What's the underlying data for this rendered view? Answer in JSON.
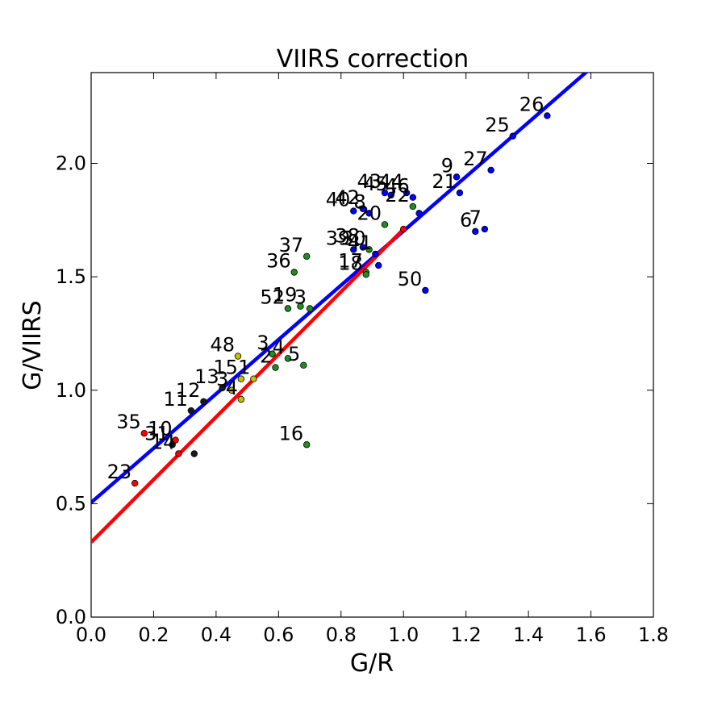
{
  "chart_data": {
    "type": "scatter",
    "title": "VIIRS correction",
    "xlabel": "G/R",
    "ylabel": "G/VIIRS",
    "xlim": [
      0.0,
      1.8
    ],
    "ylim": [
      0.0,
      2.4
    ],
    "x_ticks": [
      "0.0",
      "0.2",
      "0.4",
      "0.6",
      "0.8",
      "1.0",
      "1.2",
      "1.4",
      "1.6",
      "1.8"
    ],
    "y_ticks": [
      "0.0",
      "0.5",
      "1.0",
      "1.5",
      "2.0"
    ],
    "grid": false,
    "colors": {
      "red": "#ff0000",
      "black": "#1a1a1a",
      "yellow": "#bfbf00",
      "green": "#228b22",
      "blue": "#0000ff"
    },
    "fit_lines": [
      {
        "color": "blue",
        "x": [
          0.0,
          1.6
        ],
        "y": [
          0.505,
          2.42
        ]
      },
      {
        "color": "red",
        "x": [
          0.0,
          1.0
        ],
        "y": [
          0.33,
          1.71
        ]
      }
    ],
    "points": [
      {
        "label": "23",
        "x": 0.14,
        "y": 0.59,
        "color": "red"
      },
      {
        "label": "35",
        "x": 0.17,
        "y": 0.81,
        "color": "red"
      },
      {
        "label": "10",
        "x": 0.27,
        "y": 0.78,
        "color": "red"
      },
      {
        "label": "31",
        "x": 0.26,
        "y": 0.76,
        "color": "black"
      },
      {
        "label": "14",
        "x": 0.28,
        "y": 0.72,
        "color": "red"
      },
      {
        "label": "",
        "x": 0.33,
        "y": 0.72,
        "color": "black"
      },
      {
        "label": "11",
        "x": 0.32,
        "y": 0.91,
        "color": "black"
      },
      {
        "label": "12",
        "x": 0.36,
        "y": 0.95,
        "color": "black"
      },
      {
        "label": "13",
        "x": 0.42,
        "y": 1.01,
        "color": "black"
      },
      {
        "label": "3",
        "x": 0.45,
        "y": 1.0,
        "color": "yellow"
      },
      {
        "label": "4",
        "x": 0.48,
        "y": 0.96,
        "color": "yellow"
      },
      {
        "label": "15",
        "x": 0.48,
        "y": 1.05,
        "color": "yellow"
      },
      {
        "label": "1",
        "x": 0.52,
        "y": 1.05,
        "color": "yellow"
      },
      {
        "label": "48",
        "x": 0.47,
        "y": 1.15,
        "color": "yellow"
      },
      {
        "label": "2",
        "x": 0.59,
        "y": 1.1,
        "color": "green"
      },
      {
        "label": "3",
        "x": 0.58,
        "y": 1.16,
        "color": "green"
      },
      {
        "label": "4",
        "x": 0.63,
        "y": 1.14,
        "color": "green"
      },
      {
        "label": "5",
        "x": 0.68,
        "y": 1.11,
        "color": "green"
      },
      {
        "label": "16",
        "x": 0.69,
        "y": 0.76,
        "color": "green"
      },
      {
        "label": "19",
        "x": 0.67,
        "y": 1.37,
        "color": "green"
      },
      {
        "label": "52",
        "x": 0.63,
        "y": 1.36,
        "color": "green"
      },
      {
        "label": "3",
        "x": 0.7,
        "y": 1.36,
        "color": "green"
      },
      {
        "label": "36",
        "x": 0.65,
        "y": 1.52,
        "color": "green"
      },
      {
        "label": "37",
        "x": 0.69,
        "y": 1.59,
        "color": "green"
      },
      {
        "label": "39",
        "x": 0.84,
        "y": 1.62,
        "color": "blue"
      },
      {
        "label": "38",
        "x": 0.87,
        "y": 1.63,
        "color": "blue"
      },
      {
        "label": "30",
        "x": 0.89,
        "y": 1.62,
        "color": "green"
      },
      {
        "label": "41",
        "x": 0.91,
        "y": 1.6,
        "color": "blue"
      },
      {
        "label": "17",
        "x": 0.88,
        "y": 1.52,
        "color": "green"
      },
      {
        "label": "18",
        "x": 0.88,
        "y": 1.51,
        "color": "green"
      },
      {
        "label": "",
        "x": 0.92,
        "y": 1.55,
        "color": "blue"
      },
      {
        "label": "8",
        "x": 0.89,
        "y": 1.78,
        "color": "blue"
      },
      {
        "label": "20",
        "x": 0.94,
        "y": 1.73,
        "color": "green"
      },
      {
        "label": "42",
        "x": 0.87,
        "y": 1.8,
        "color": "blue"
      },
      {
        "label": "40",
        "x": 0.84,
        "y": 1.79,
        "color": "blue"
      },
      {
        "label": "43",
        "x": 0.94,
        "y": 1.87,
        "color": "blue"
      },
      {
        "label": "45",
        "x": 0.96,
        "y": 1.86,
        "color": "blue"
      },
      {
        "label": "44",
        "x": 1.01,
        "y": 1.87,
        "color": "blue"
      },
      {
        "label": "46",
        "x": 1.03,
        "y": 1.85,
        "color": "blue"
      },
      {
        "label": "22",
        "x": 1.03,
        "y": 1.81,
        "color": "green"
      },
      {
        "label": "",
        "x": 1.05,
        "y": 1.78,
        "color": "blue"
      },
      {
        "label": "",
        "x": 1.0,
        "y": 1.71,
        "color": "red"
      },
      {
        "label": "50",
        "x": 1.07,
        "y": 1.44,
        "color": "blue"
      },
      {
        "label": "9",
        "x": 1.17,
        "y": 1.94,
        "color": "blue"
      },
      {
        "label": "21",
        "x": 1.18,
        "y": 1.87,
        "color": "blue"
      },
      {
        "label": "6",
        "x": 1.23,
        "y": 1.7,
        "color": "blue"
      },
      {
        "label": "7",
        "x": 1.26,
        "y": 1.71,
        "color": "blue"
      },
      {
        "label": "27",
        "x": 1.28,
        "y": 1.97,
        "color": "blue"
      },
      {
        "label": "25",
        "x": 1.35,
        "y": 2.12,
        "color": "blue"
      },
      {
        "label": "26",
        "x": 1.46,
        "y": 2.21,
        "color": "blue"
      }
    ]
  }
}
